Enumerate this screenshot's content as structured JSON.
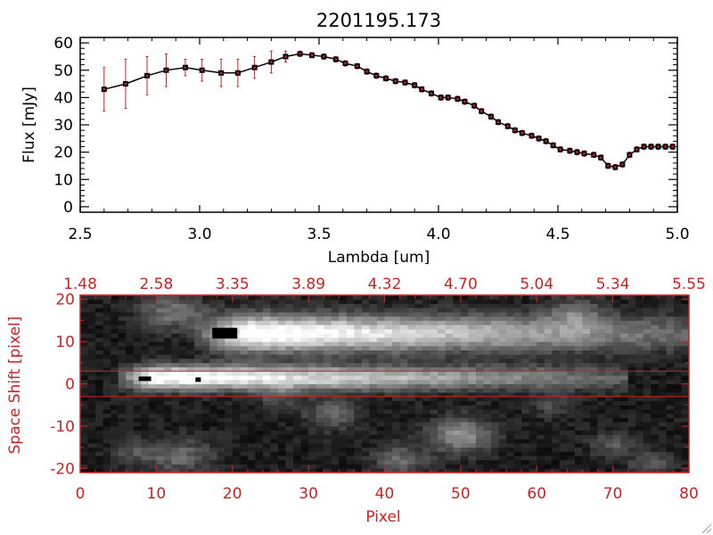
{
  "chart_data": [
    {
      "type": "line",
      "title": "2201195.173",
      "xlabel": "Lambda [um]",
      "ylabel": "Flux [mJy]",
      "xlim": [
        2.5,
        5.0
      ],
      "ylim": [
        -2,
        62
      ],
      "xticks": [
        "2.5",
        "3.0",
        "3.5",
        "4.0",
        "4.5",
        "5.0"
      ],
      "yticks": [
        "0",
        "10",
        "20",
        "30",
        "40",
        "50",
        "60"
      ],
      "grid": false,
      "series": [
        {
          "color": "#000000",
          "error_color": "#cc2222",
          "x": [
            2.6,
            2.69,
            2.78,
            2.86,
            2.94,
            3.01,
            3.09,
            3.16,
            3.23,
            3.3,
            3.36,
            3.42,
            3.47,
            3.52,
            3.57,
            3.61,
            3.66,
            3.7,
            3.74,
            3.78,
            3.82,
            3.86,
            3.9,
            3.93,
            3.97,
            4.01,
            4.04,
            4.08,
            4.11,
            4.15,
            4.18,
            4.22,
            4.25,
            4.29,
            4.32,
            4.35,
            4.39,
            4.42,
            4.45,
            4.48,
            4.51,
            4.55,
            4.58,
            4.61,
            4.65,
            4.68,
            4.71,
            4.74,
            4.77,
            4.8,
            4.83,
            4.86,
            4.89,
            4.92,
            4.95,
            4.98
          ],
          "y": [
            43,
            45,
            48,
            50,
            51,
            50,
            49,
            49,
            51,
            53,
            55,
            56,
            55.5,
            55,
            54,
            52.5,
            51.5,
            49.5,
            48,
            47,
            46,
            45.5,
            44.5,
            43,
            41.5,
            40,
            40,
            39.5,
            38.5,
            37,
            35,
            33,
            31,
            29.5,
            28,
            27,
            26,
            25,
            24,
            22.5,
            21,
            20.5,
            20,
            19.5,
            19,
            18,
            15,
            14.5,
            15.5,
            19,
            21,
            22,
            22,
            22,
            22,
            22
          ],
          "err": [
            8,
            9,
            7,
            6,
            3,
            4,
            5,
            5,
            4,
            4,
            2,
            1,
            1,
            1,
            1,
            1,
            1,
            1,
            1,
            1,
            1,
            1,
            1,
            1,
            1,
            1,
            1,
            1,
            1,
            1,
            1,
            1,
            1,
            1,
            1,
            1,
            1,
            1,
            1,
            1,
            1,
            1,
            1,
            1,
            1,
            1,
            1,
            1,
            1,
            1,
            1,
            1,
            1,
            1,
            1,
            1
          ]
        }
      ]
    },
    {
      "type": "heatmap",
      "xlabel": "Pixel",
      "ylabel": "Space Shift [pixel]",
      "xlim": [
        0,
        80
      ],
      "ylim": [
        -21,
        21
      ],
      "xticks": [
        "0",
        "10",
        "20",
        "30",
        "40",
        "50",
        "60",
        "70",
        "80"
      ],
      "yticks": [
        "-20",
        "-10",
        "0",
        "10",
        "20"
      ],
      "top_axis_ticks": [
        "1.48",
        "2.58",
        "3.35",
        "3.89",
        "4.32",
        "4.70",
        "5.04",
        "5.34",
        "5.55"
      ],
      "colormap": "grayscale",
      "axis_color": "#cc2222",
      "extraction_aperture": [
        -3,
        3
      ],
      "traces": [
        {
          "y_center": 1.5,
          "x_start": 6,
          "x_end": 72,
          "peak_x": 10
        },
        {
          "y_center": 12,
          "x_start": 16,
          "x_end": 82,
          "peak_x": 22
        }
      ],
      "bad_pixels": [
        {
          "x": 8.5,
          "y": 1.2
        },
        {
          "x": 15.5,
          "y": 1.0
        },
        {
          "x": 19,
          "y": 12
        }
      ]
    }
  ]
}
